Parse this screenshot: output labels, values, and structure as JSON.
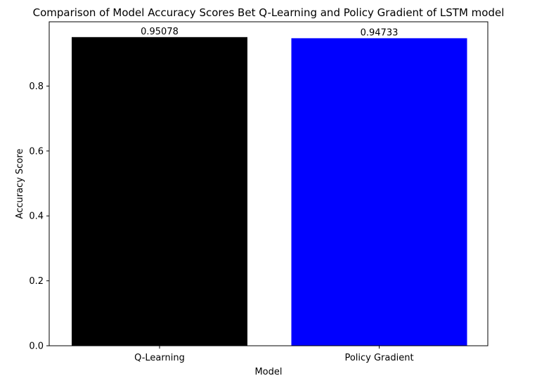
{
  "chart_data": {
    "type": "bar",
    "title": "Comparison of Model Accuracy Scores Bet Q-Learning and Policy Gradient of LSTM model",
    "xlabel": "Model",
    "ylabel": "Accuracy Score",
    "categories": [
      "Q-Learning",
      "Policy Gradient"
    ],
    "values": [
      0.95078,
      0.94733
    ],
    "data_labels": [
      "0.95078",
      "0.94733"
    ],
    "bar_colors": [
      "#000000",
      "#0000ff"
    ],
    "ylim": [
      0,
      0.998
    ],
    "yticks": [
      0.0,
      0.2,
      0.4,
      0.6,
      0.8
    ],
    "ytick_labels": [
      "0.0",
      "0.2",
      "0.4",
      "0.6",
      "0.8"
    ],
    "grid": false,
    "legend": "none"
  }
}
